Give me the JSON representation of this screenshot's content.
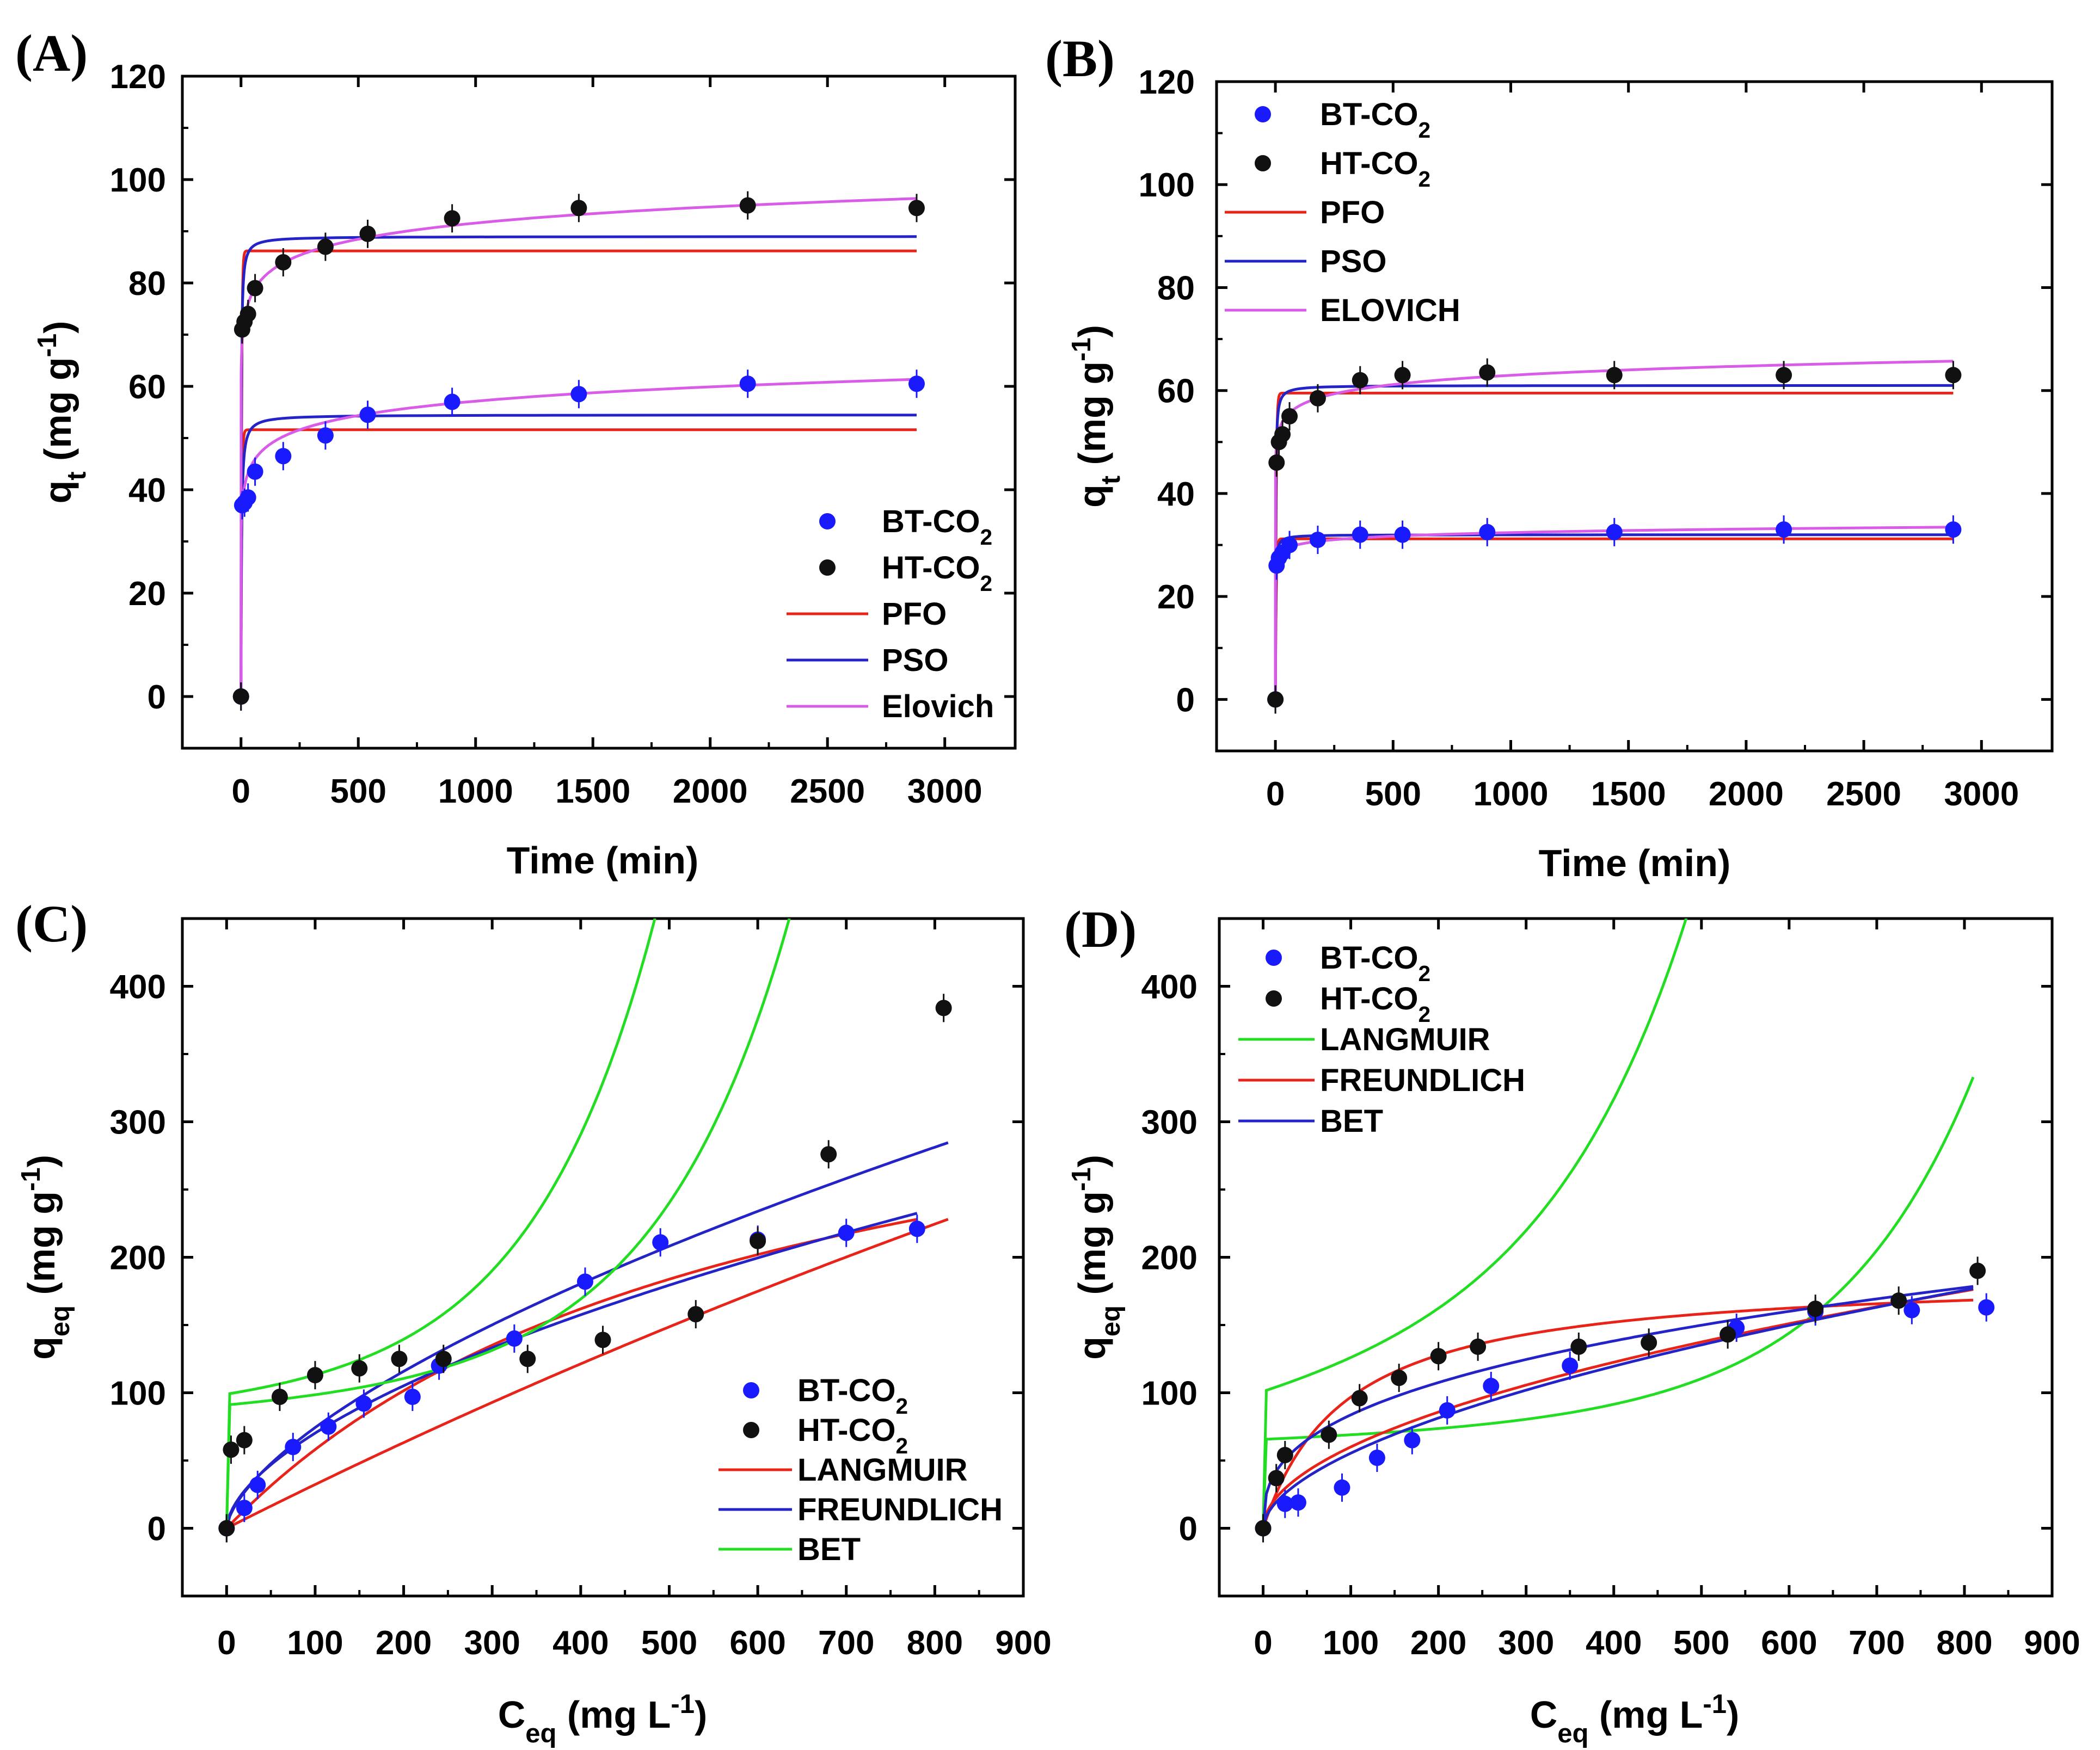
{
  "chart_data": [
    {
      "panel": "(A)",
      "type": "scatter",
      "xlabel": "Time (min)",
      "ylabel": "qt (mg g-1)",
      "xlim": [
        -250,
        3300
      ],
      "ylim": [
        -10,
        120
      ],
      "xticks": [
        0,
        500,
        1000,
        1500,
        2000,
        2500,
        3000
      ],
      "yticks": [
        0,
        20,
        40,
        60,
        80,
        100,
        120
      ],
      "legend_position": "bottom-right",
      "series": [
        {
          "name": "BT-CO2",
          "kind": "points",
          "color": "#1a1aff",
          "x": [
            0,
            5,
            15,
            30,
            60,
            180,
            360,
            540,
            900,
            1440,
            2160,
            2880
          ],
          "y": [
            0,
            37,
            37.5,
            38.5,
            43.5,
            46.5,
            50.5,
            54.5,
            57,
            58.5,
            60.5,
            60.5
          ]
        },
        {
          "name": "HT-CO2",
          "kind": "points",
          "color": "#111111",
          "x": [
            0,
            5,
            15,
            30,
            60,
            180,
            360,
            540,
            900,
            1440,
            2160,
            2880
          ],
          "y": [
            0,
            71,
            72.5,
            74,
            79,
            84,
            87,
            89.5,
            92.5,
            94.5,
            95,
            94.5
          ]
        },
        {
          "name": "PFO",
          "kind": "line",
          "color": "#e8231a",
          "model": "pfo",
          "groups": [
            {
              "qe": 86.2,
              "k": 0.35
            },
            {
              "qe": 51.6,
              "k": 0.3
            }
          ]
        },
        {
          "name": "PSO",
          "kind": "line",
          "color": "#2323c8",
          "model": "pso",
          "groups": [
            {
              "qe": 89,
              "k": 0.01
            },
            {
              "qe": 54.5,
              "k": 0.008
            }
          ]
        },
        {
          "name": "Elovich",
          "kind": "line",
          "color": "#d95ce8",
          "model": "elovich",
          "groups": [
            {
              "a": 60.5,
              "b": 4.5,
              "c": 1
            },
            {
              "a": 29.5,
              "b": 4.0,
              "c": 1
            }
          ]
        }
      ]
    },
    {
      "panel": "(B)",
      "type": "scatter",
      "xlabel": "Time (min)",
      "ylabel": "qt (mg g-1)",
      "xlim": [
        -250,
        3300
      ],
      "ylim": [
        -10,
        120
      ],
      "xticks": [
        0,
        500,
        1000,
        1500,
        2000,
        2500,
        3000
      ],
      "yticks": [
        0,
        20,
        40,
        60,
        80,
        100,
        120
      ],
      "legend_position": "top-left",
      "series": [
        {
          "name": "BT-CO2",
          "kind": "points",
          "color": "#1a1aff",
          "x": [
            0,
            5,
            15,
            30,
            60,
            180,
            360,
            540,
            900,
            1440,
            2160,
            2880
          ],
          "y": [
            0,
            26,
            27.5,
            28.5,
            30,
            31,
            32,
            32,
            32.5,
            32.5,
            33,
            33
          ]
        },
        {
          "name": "HT-CO2",
          "kind": "points",
          "color": "#111111",
          "x": [
            0,
            5,
            15,
            30,
            60,
            180,
            360,
            540,
            900,
            1440,
            2160,
            2880
          ],
          "y": [
            0,
            46,
            50,
            51.5,
            55,
            58.5,
            62,
            63,
            63.5,
            63,
            63,
            63
          ]
        },
        {
          "name": "PFO",
          "kind": "line",
          "color": "#e8231a",
          "model": "pfo",
          "groups": [
            {
              "qe": 59.5,
              "k": 0.3
            },
            {
              "qe": 31.2,
              "k": 0.3
            }
          ]
        },
        {
          "name": "PSO",
          "kind": "line",
          "color": "#2323c8",
          "model": "pso",
          "groups": [
            {
              "qe": 61,
              "k": 0.015
            },
            {
              "qe": 32,
              "k": 0.03
            }
          ]
        },
        {
          "name": "ELOVICH",
          "kind": "line",
          "color": "#d95ce8",
          "model": "elovich",
          "groups": [
            {
              "a": 45,
              "b": 2.6,
              "c": 1
            },
            {
              "a": 25.5,
              "b": 1.0,
              "c": 1
            }
          ]
        }
      ]
    },
    {
      "panel": "(C)",
      "type": "scatter",
      "xlabel": "Ceq (mg L-1)",
      "ylabel": "qeq (mg g-1)",
      "xlim": [
        -50,
        900
      ],
      "ylim": [
        -50,
        450
      ],
      "xticks": [
        0,
        100,
        200,
        300,
        400,
        500,
        600,
        700,
        800,
        900
      ],
      "yticks": [
        0,
        100,
        200,
        300,
        400
      ],
      "legend_position": "bottom-right",
      "series": [
        {
          "name": "BT-CO2",
          "kind": "points",
          "color": "#1a1aff",
          "x": [
            0,
            20,
            35,
            75,
            115,
            155,
            210,
            240,
            325,
            405,
            490,
            600,
            700,
            780
          ],
          "y": [
            0,
            15,
            32,
            60,
            75,
            92,
            97,
            120,
            140,
            182,
            211,
            213,
            218,
            221
          ]
        },
        {
          "name": "HT-CO2",
          "kind": "points",
          "color": "#111111",
          "x": [
            0,
            5,
            20,
            60,
            100,
            150,
            195,
            245,
            340,
            425,
            530,
            600,
            680,
            810
          ],
          "y": [
            0,
            58,
            65,
            97,
            113,
            118,
            125,
            125,
            125,
            139,
            158,
            212,
            276,
            384
          ]
        },
        {
          "name": "LANGMUIR",
          "kind": "line",
          "color": "#e8231a",
          "models": [
            {
              "type": "langmuir",
              "qm": 1500,
              "K": 0.00022,
              "xmax": 815
            },
            {
              "type": "langmuir",
              "qm": 400,
              "K": 0.0017,
              "xmax": 780
            }
          ]
        },
        {
          "name": "FREUNDLICH",
          "kind": "line",
          "color": "#2323c8",
          "models": [
            {
              "type": "freundlich",
              "K": 3.9,
              "n": 0.64,
              "xmax": 815
            },
            {
              "type": "freundlich",
              "K": 4.79,
              "n": 0.583,
              "xmax": 780
            }
          ]
        },
        {
          "name": "BET",
          "kind": "line",
          "color": "#22dd22",
          "models": [
            {
              "type": "bet",
              "base": 86,
              "slope": 0.028,
              "A": 5,
              "tau": 150,
              "xmax": 815
            },
            {
              "type": "bet",
              "base": 88,
              "slope": 0.028,
              "A": 11,
              "tau": 140,
              "xmax": 780
            }
          ]
        }
      ]
    },
    {
      "panel": "(D)",
      "type": "scatter",
      "xlabel": "Ceq (mg L-1)",
      "ylabel": "qeq (mg g-1)",
      "xlim": [
        -50,
        900
      ],
      "ylim": [
        -50,
        450
      ],
      "xticks": [
        0,
        100,
        200,
        300,
        400,
        500,
        600,
        700,
        800,
        900
      ],
      "yticks": [
        0,
        100,
        200,
        300,
        400
      ],
      "legend_position": "top-left",
      "series": [
        {
          "name": "BT-CO2",
          "kind": "points",
          "color": "#1a1aff",
          "x": [
            0,
            25,
            40,
            90,
            130,
            170,
            210,
            260,
            350,
            540,
            630,
            740,
            825
          ],
          "y": [
            0,
            18,
            19,
            30,
            52,
            65,
            87,
            105,
            120,
            148,
            160,
            161,
            163
          ]
        },
        {
          "name": "HT-CO2",
          "kind": "points",
          "color": "#111111",
          "x": [
            0,
            15,
            25,
            75,
            110,
            155,
            200,
            245,
            360,
            440,
            530,
            630,
            725,
            815
          ],
          "y": [
            0,
            37,
            54,
            69,
            96,
            111,
            127,
            134,
            134,
            137,
            143,
            162,
            168,
            190
          ]
        },
        {
          "name": "LANGMUIR",
          "kind": "line",
          "color": "#22dd22",
          "models": [
            {
              "type": "bet",
              "base": 86,
              "slope": 0.12,
              "A": 15,
              "tau": 160,
              "xmax": 810
            },
            {
              "type": "bet",
              "base": 64,
              "slope": 0.02,
              "A": 1.6,
              "tau": 160,
              "xmax": 810
            }
          ]
        },
        {
          "name": "FREUNDLICH",
          "kind": "line",
          "color": "#e8231a",
          "models": [
            {
              "type": "langmuir",
              "qm": 188,
              "K": 0.0106,
              "xmax": 810
            },
            {
              "type": "freundlich",
              "K": 5.6,
              "n": 0.515,
              "xmax": 810
            }
          ]
        },
        {
          "name": "BET",
          "kind": "line",
          "color": "#2323c8",
          "models": [
            {
              "type": "freundlich",
              "K": 15.8,
              "n": 0.362,
              "xmax": 810
            },
            {
              "type": "freundlich",
              "K": 4.3,
              "n": 0.555,
              "xmax": 810
            }
          ]
        }
      ]
    }
  ]
}
